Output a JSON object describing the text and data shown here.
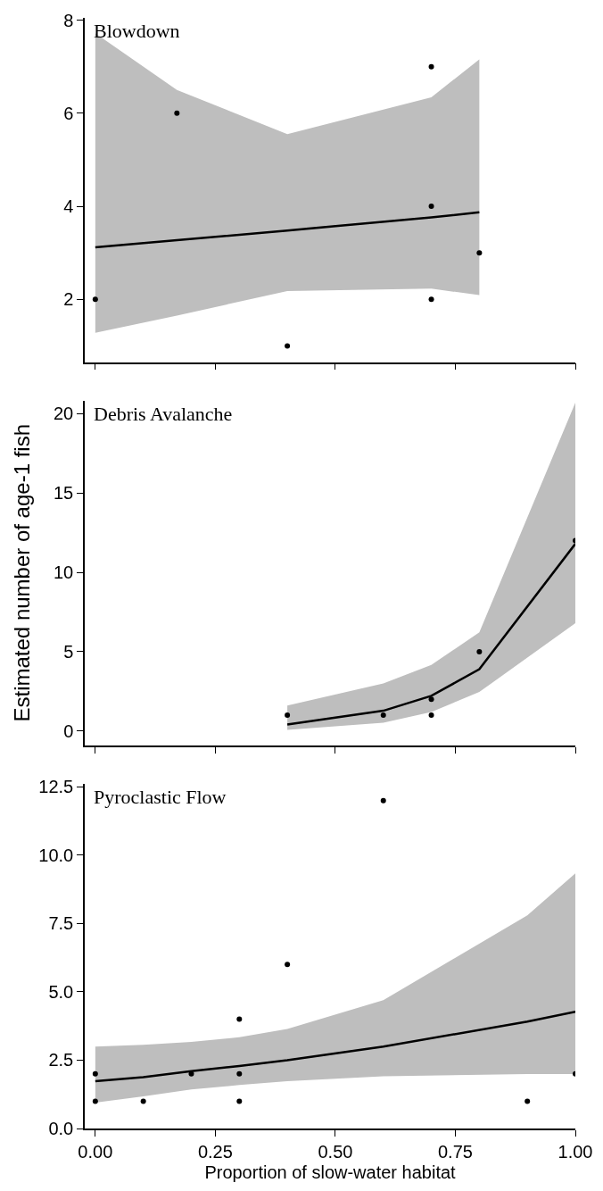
{
  "chart_data": [
    {
      "type": "line",
      "title": "Blowdown",
      "xlim": [
        -0.022,
        1.0
      ],
      "xticks": [
        {
          "value": 0,
          "label": null
        },
        {
          "value": 0.25,
          "label": null
        },
        {
          "value": 0.5,
          "label": null
        },
        {
          "value": 0.75,
          "label": null
        },
        {
          "value": 1,
          "label": null
        }
      ],
      "ylim": [
        0.65,
        8.05
      ],
      "yticks": [
        2,
        4,
        6,
        8
      ],
      "tick_labels": "y",
      "series": [
        {
          "color": "#000000",
          "line_style": "solid",
          "x": [
            0,
            0.17,
            0.4,
            0.7,
            0.8
          ],
          "values": [
            3.12,
            3.27,
            3.48,
            3.76,
            3.87
          ],
          "lower": [
            1.28,
            1.65,
            2.18,
            2.23,
            2.09
          ],
          "upper": [
            7.72,
            6.5,
            5.55,
            6.34,
            7.16
          ]
        },
        {
          "type": "scatter",
          "color": "#000000",
          "marker": "circle",
          "x": [
            0,
            0.17,
            0.4,
            0.7,
            0.7,
            0.7,
            0.8
          ],
          "values": [
            2,
            6,
            1,
            7,
            4,
            2,
            3
          ]
        }
      ]
    },
    {
      "type": "line",
      "title": "Debris Avalanche",
      "ylabel": "Estimated number of age-1 fish",
      "xlim": [
        -0.022,
        1.0
      ],
      "xticks": [
        {
          "value": 0,
          "label": null
        },
        {
          "value": 0.25,
          "label": null
        },
        {
          "value": 0.5,
          "label": null
        },
        {
          "value": 0.75,
          "label": null
        },
        {
          "value": 1,
          "label": null
        }
      ],
      "ylim": [
        -0.9,
        20.8
      ],
      "yticks": [
        0,
        5,
        10,
        15,
        20
      ],
      "tick_labels": "y",
      "series": [
        {
          "color": "#000000",
          "line_style": "solid",
          "x": [
            0.4,
            0.6,
            0.7,
            0.8,
            1.0
          ],
          "values": [
            0.41,
            1.28,
            2.22,
            3.9,
            11.8
          ],
          "lower": [
            0.07,
            0.53,
            1.2,
            2.46,
            6.8
          ],
          "upper": [
            1.61,
            3.0,
            4.17,
            6.22,
            20.7
          ]
        },
        {
          "type": "scatter",
          "color": "#000000",
          "marker": "circle",
          "x": [
            0.4,
            0.6,
            0.7,
            0.7,
            0.8,
            1.0
          ],
          "values": [
            1,
            1,
            2,
            1,
            5,
            12
          ]
        }
      ]
    },
    {
      "type": "line",
      "title": "Pyroclastic Flow",
      "xlabel": "Proportion of slow-water habitat",
      "xlim": [
        -0.022,
        1.0
      ],
      "xticks": [
        {
          "value": 0,
          "label": "0.00"
        },
        {
          "value": 0.25,
          "label": "0.25"
        },
        {
          "value": 0.5,
          "label": "0.50"
        },
        {
          "value": 0.75,
          "label": "0.75"
        },
        {
          "value": 1,
          "label": "1.00"
        }
      ],
      "ylim": [
        0,
        12.6
      ],
      "yticks": [
        {
          "value": 0,
          "label": "0.0"
        },
        2.5,
        {
          "value": 5,
          "label": "5.0"
        },
        7.5,
        {
          "value": 10,
          "label": "10.0"
        },
        12.5
      ],
      "series": [
        {
          "color": "#000000",
          "line_style": "solid",
          "x": [
            0,
            0.1,
            0.2,
            0.3,
            0.4,
            0.6,
            0.9,
            1.0
          ],
          "values": [
            1.73,
            1.88,
            2.1,
            2.29,
            2.5,
            3.0,
            3.91,
            4.27
          ],
          "lower": [
            0.95,
            1.18,
            1.43,
            1.59,
            1.73,
            1.91,
            1.99,
            1.99
          ],
          "upper": [
            3.0,
            3.06,
            3.17,
            3.34,
            3.64,
            4.7,
            7.8,
            9.34
          ]
        },
        {
          "type": "scatter",
          "color": "#000000",
          "marker": "circle",
          "x": [
            0,
            0,
            0.1,
            0.2,
            0.3,
            0.3,
            0.3,
            0.4,
            0.6,
            0.9,
            1.0
          ],
          "values": [
            2,
            1,
            1,
            2,
            4,
            2,
            1,
            6,
            12,
            1,
            2
          ]
        }
      ]
    }
  ]
}
